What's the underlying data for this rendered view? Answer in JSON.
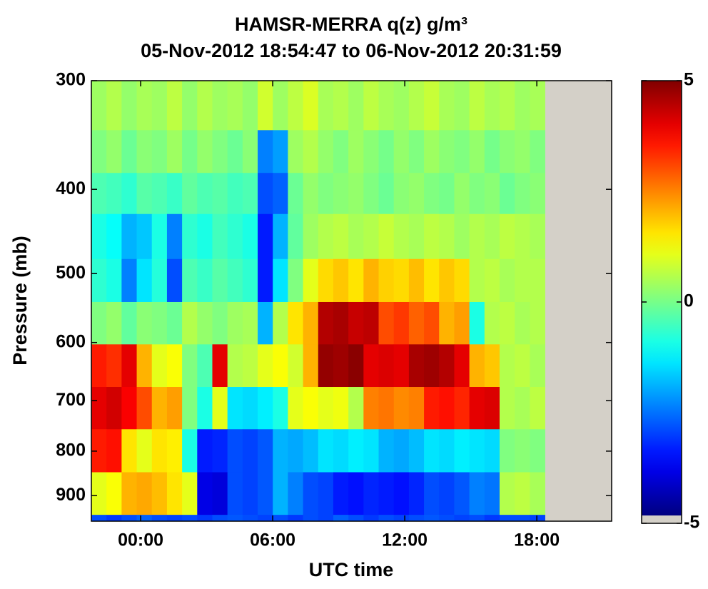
{
  "chart_data": {
    "type": "heatmap",
    "title": "HAMSR-MERRA q(z) g/m³",
    "subtitle": "05-Nov-2012 18:54:47 to 06-Nov-2012 20:31:59",
    "xlabel": "UTC time",
    "ylabel": "Pressure (mb)",
    "x_edges": [
      -2.24,
      -1.553,
      -0.866,
      -0.179,
      0.508,
      1.195,
      1.882,
      2.569,
      3.256,
      3.943,
      4.63,
      5.317,
      6.004,
      6.691,
      7.378,
      8.065,
      8.752,
      9.439,
      10.126,
      10.813,
      11.5,
      12.187,
      12.874,
      13.561,
      14.248,
      14.935,
      15.622,
      16.309,
      16.996,
      17.683,
      18.37
    ],
    "y_edges": [
      300,
      342,
      383,
      427,
      481,
      539,
      603,
      675,
      755,
      846,
      947,
      963
    ],
    "xlim": [
      -2.24,
      21.4
    ],
    "xticks": [
      {
        "value": 0,
        "label": "00:00"
      },
      {
        "value": 6,
        "label": "06:00"
      },
      {
        "value": 12,
        "label": "12:00"
      },
      {
        "value": 18,
        "label": "18:00"
      }
    ],
    "ylim": [
      300,
      963
    ],
    "yscale": "log",
    "yreversed": true,
    "yticks": [
      300,
      400,
      500,
      600,
      700,
      800,
      900
    ],
    "clim": [
      -5,
      5
    ],
    "cticks": [
      5,
      0,
      -5
    ],
    "colormap": "jet",
    "nan_color": "#d4d0c8",
    "z": [
      [
        0.3,
        0.5,
        0.2,
        0.4,
        0.3,
        0.6,
        0.2,
        0.5,
        0.3,
        0.4,
        0.2,
        0.8,
        0.3,
        0.6,
        0.9,
        0.4,
        0.5,
        0.3,
        0.6,
        0.4,
        0.3,
        0.5,
        0.7,
        0.4,
        0.3,
        0.6,
        0.4,
        0.5,
        0.3,
        0.4
      ],
      [
        0,
        0.2,
        -0.2,
        0.1,
        0,
        0.3,
        -0.1,
        0.2,
        0,
        -0.2,
        0.1,
        -2.5,
        -2.2,
        0.3,
        0.5,
        0.2,
        0,
        0.3,
        0.1,
        -0.1,
        0.2,
        0,
        0.3,
        0.1,
        0,
        0.2,
        -0.1,
        0.1,
        0.2,
        0
      ],
      [
        -0.5,
        -0.6,
        -0.8,
        -0.4,
        -0.5,
        -0.7,
        -0.3,
        -0.5,
        -0.4,
        -0.6,
        -0.5,
        -3,
        -2.8,
        -0.2,
        0.2,
        0,
        0.1,
        0.2,
        0,
        -0.2,
        0.1,
        0.2,
        0,
        -0.1,
        0.2,
        0,
        0.1,
        -0.2,
        0,
        0.1
      ],
      [
        -1,
        -1.2,
        -2,
        -1.8,
        -1,
        -2.5,
        -0.8,
        -1,
        -0.6,
        -0.8,
        -1,
        -3.5,
        -2,
        -0.3,
        0.3,
        0.5,
        0.6,
        0.4,
        0.5,
        0.7,
        0.5,
        0.4,
        0.6,
        0.5,
        0.3,
        0.5,
        0.4,
        0.6,
        0.5,
        0.4
      ],
      [
        -0.8,
        -1,
        -2.5,
        -1.5,
        -0.9,
        -3,
        -0.5,
        -0.7,
        -0.4,
        -0.6,
        -0.8,
        -3.5,
        -1.5,
        0,
        1,
        1.6,
        1.8,
        1.5,
        2,
        1.7,
        1.6,
        1.9,
        1.5,
        1.8,
        1.6,
        0.5,
        0.6,
        0.4,
        0.5,
        0.5
      ],
      [
        0,
        0.2,
        -0.3,
        0.1,
        0,
        -0.2,
        0.5,
        0.2,
        0,
        0.3,
        0.4,
        -2,
        0.5,
        1.5,
        2,
        4.5,
        4.6,
        4.3,
        4.4,
        3,
        3.2,
        2.8,
        3,
        2,
        2.2,
        -1,
        0.5,
        0.6,
        0.4,
        0.5
      ],
      [
        3.5,
        3.3,
        4,
        2,
        1,
        1.2,
        0,
        -0.5,
        4,
        0.5,
        0.6,
        1,
        1.2,
        0.8,
        2,
        4.8,
        4.7,
        4.9,
        4,
        4.1,
        4,
        4.6,
        4.7,
        4.5,
        4,
        2,
        1.8,
        0.5,
        0.6,
        0.4
      ],
      [
        4,
        4.2,
        3.8,
        3,
        2,
        2.2,
        0,
        -1,
        1,
        -1.5,
        -1.6,
        -1.4,
        -1,
        1,
        1.2,
        1,
        1.1,
        0.5,
        2.5,
        2.6,
        2.4,
        2.5,
        3.5,
        3.6,
        3.4,
        4,
        4.1,
        0.5,
        0.4,
        0.6
      ],
      [
        3.5,
        3.6,
        1.5,
        1,
        1.5,
        1.4,
        -1,
        -3.5,
        -3.4,
        -3,
        -3.1,
        -2.9,
        -2,
        -2.1,
        -1.9,
        -1.5,
        -1.6,
        -1.4,
        -1.5,
        -2,
        -2.1,
        -1.9,
        -1.5,
        -1.6,
        -1.4,
        -1.5,
        -1.6,
        0,
        0.1,
        0
      ],
      [
        1,
        1.2,
        2,
        2.1,
        1.9,
        1.5,
        1,
        -4,
        -4.1,
        -3,
        -3.1,
        -2.9,
        -2,
        -2.5,
        -3,
        -3.1,
        -3.5,
        -3.6,
        -3.4,
        -3.5,
        -3.6,
        -3.4,
        -3,
        -3.1,
        -2.9,
        -2.5,
        -2.6,
        0.5,
        0.6,
        0.4
      ],
      [
        -3,
        -3.2,
        -3,
        -2.8,
        -3,
        -3.1,
        -3,
        -3.2,
        -3,
        -2.9,
        -3,
        -3.1,
        -3,
        -3.2,
        -3,
        -3.1,
        -2.8,
        -3,
        -3.2,
        -3,
        -3.1,
        -3,
        -2.9,
        -3,
        -3.1,
        -3,
        -3.2,
        -3,
        -3,
        -3.1
      ]
    ]
  }
}
